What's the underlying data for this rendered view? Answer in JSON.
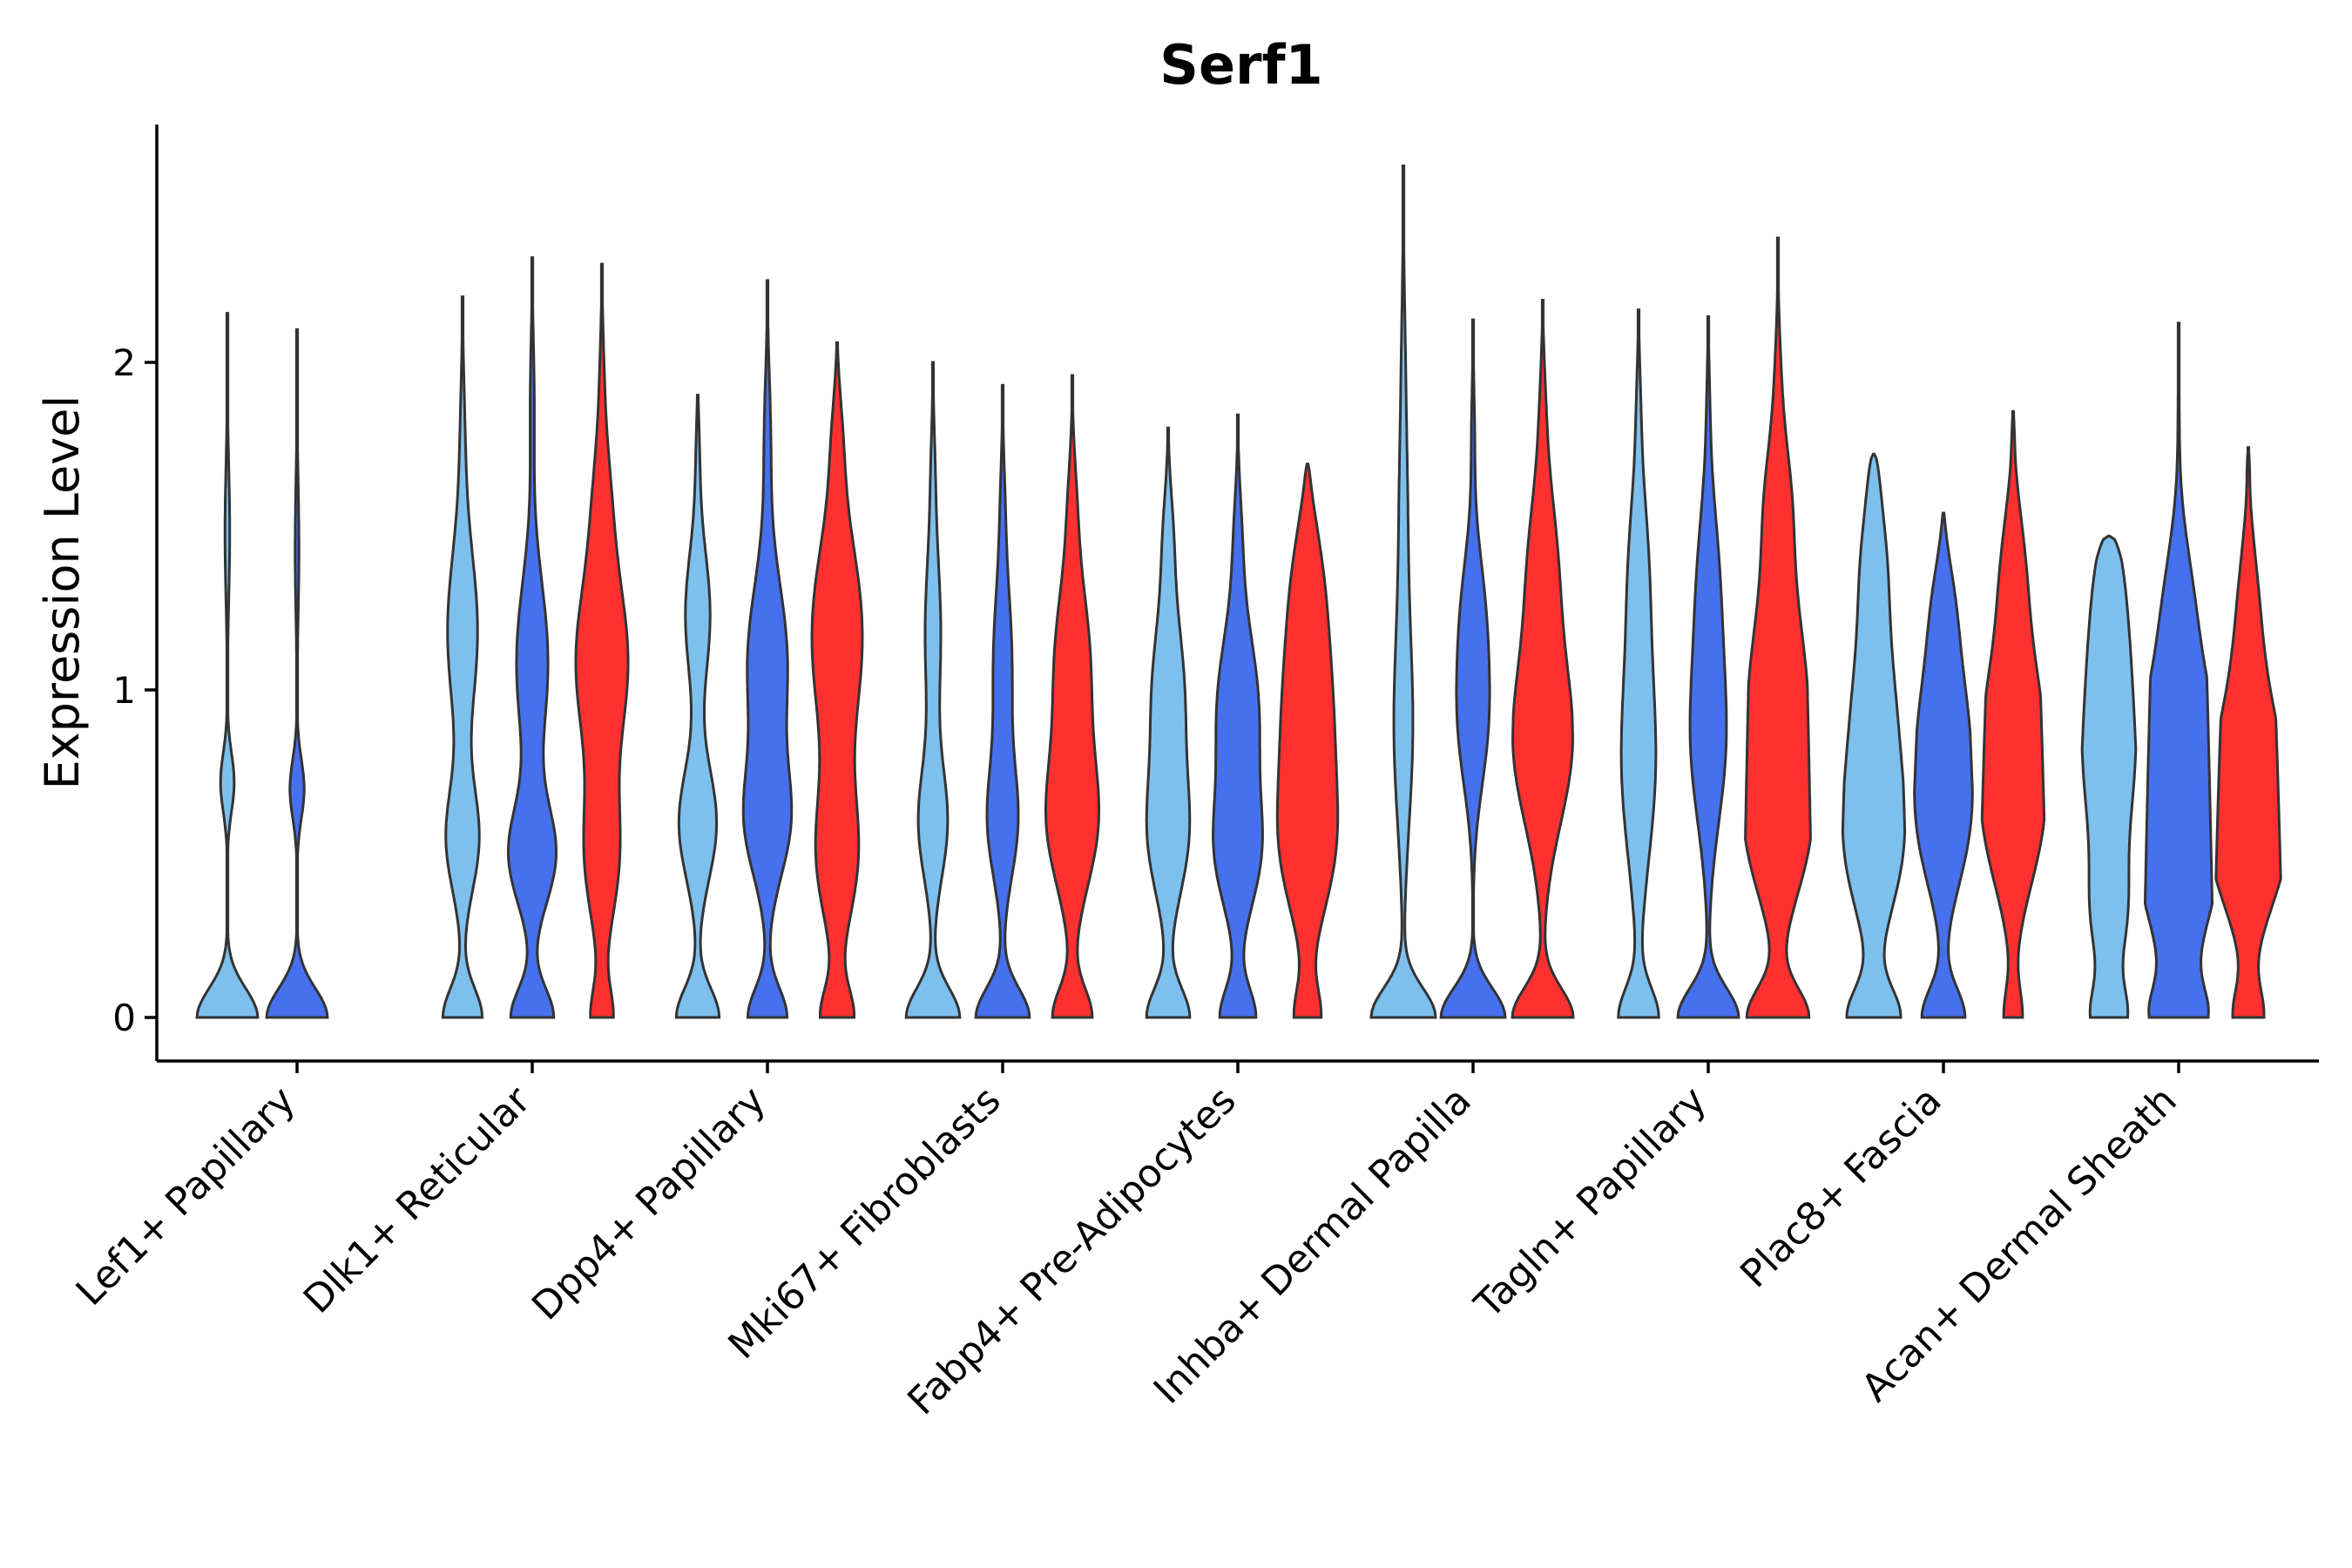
{
  "chart_data": {
    "type": "violin",
    "title": "Serf1",
    "xlabel": "",
    "ylabel": "Expression Level",
    "ylim": [
      -0.13,
      2.75
    ],
    "yticks": [
      0,
      1,
      2
    ],
    "categories": [
      "Lef1+ Papillary",
      "Dlk1+ Reticular",
      "Dpp4+ Papillary",
      "Mki67+ Fibroblasts",
      "Fabp4+ Pre-Adipocytes",
      "Inhba+ Dermal Papilla",
      "Tagln+ Papillary",
      "Plac8+ Fascia",
      "Acan+ Dermal Sheath"
    ],
    "groups": [
      {
        "name": "group-1",
        "color": "#7dbfed"
      },
      {
        "name": "group-2",
        "color": "#4670ee"
      },
      {
        "name": "group-3",
        "color": "#ff3030"
      }
    ],
    "violins": [
      {
        "category": 0,
        "group": 0,
        "max": 2.15,
        "zeroWidth": 0.85,
        "bumps": [
          [
            0.72,
            0.22,
            0.09
          ],
          [
            1.5,
            0.1,
            0.2
          ]
        ]
      },
      {
        "category": 0,
        "group": 1,
        "max": 2.1,
        "zeroWidth": 0.85,
        "bumps": [
          [
            0.7,
            0.23,
            0.09
          ],
          [
            1.45,
            0.08,
            0.2
          ]
        ]
      },
      {
        "category": 1,
        "group": 0,
        "max": 2.2,
        "zeroWidth": 0.55,
        "bumps": [
          [
            0.55,
            0.5,
            0.16
          ],
          [
            1.2,
            0.55,
            0.25
          ],
          [
            1.8,
            0.1,
            0.2
          ]
        ]
      },
      {
        "category": 1,
        "group": 1,
        "max": 2.32,
        "zeroWidth": 0.6,
        "bumps": [
          [
            0.5,
            0.7,
            0.15
          ],
          [
            1.1,
            0.55,
            0.25
          ],
          [
            1.9,
            0.1,
            0.2
          ]
        ]
      },
      {
        "category": 1,
        "group": 2,
        "max": 2.3,
        "zeroWidth": 0.3,
        "bumps": [
          [
            0.5,
            0.5,
            0.2
          ],
          [
            1.1,
            0.9,
            0.25
          ],
          [
            1.6,
            0.3,
            0.2
          ],
          [
            2.0,
            0.08,
            0.15
          ]
        ]
      },
      {
        "category": 2,
        "group": 0,
        "max": 1.9,
        "zeroWidth": 0.6,
        "bumps": [
          [
            0.6,
            0.6,
            0.17
          ],
          [
            1.25,
            0.5,
            0.2
          ],
          [
            1.75,
            0.1,
            0.15
          ]
        ]
      },
      {
        "category": 2,
        "group": 1,
        "max": 2.25,
        "zeroWidth": 0.55,
        "bumps": [
          [
            0.6,
            0.65,
            0.17
          ],
          [
            1.1,
            0.7,
            0.25
          ],
          [
            1.8,
            0.15,
            0.2
          ]
        ]
      },
      {
        "category": 2,
        "group": 2,
        "max": 2.06,
        "zeroWidth": 0.45,
        "bumps": [
          [
            0.5,
            0.6,
            0.2
          ],
          [
            1.2,
            0.95,
            0.3
          ],
          [
            1.8,
            0.2,
            0.15
          ]
        ]
      },
      {
        "category": 3,
        "group": 0,
        "max": 2.0,
        "zeroWidth": 0.75,
        "bumps": [
          [
            0.6,
            0.45,
            0.17
          ],
          [
            1.2,
            0.3,
            0.25
          ],
          [
            1.7,
            0.08,
            0.15
          ]
        ]
      },
      {
        "category": 3,
        "group": 1,
        "max": 1.93,
        "zeroWidth": 0.75,
        "bumps": [
          [
            0.6,
            0.45,
            0.17
          ],
          [
            1.1,
            0.35,
            0.25
          ],
          [
            1.6,
            0.08,
            0.15
          ]
        ]
      },
      {
        "category": 3,
        "group": 2,
        "max": 1.96,
        "zeroWidth": 0.55,
        "bumps": [
          [
            0.6,
            0.75,
            0.2
          ],
          [
            1.1,
            0.65,
            0.25
          ],
          [
            1.6,
            0.15,
            0.15
          ]
        ]
      },
      {
        "category": 4,
        "group": 0,
        "max": 1.8,
        "zeroWidth": 0.6,
        "bumps": [
          [
            0.55,
            0.55,
            0.18
          ],
          [
            1.0,
            0.6,
            0.25
          ],
          [
            1.5,
            0.2,
            0.15
          ]
        ]
      },
      {
        "category": 4,
        "group": 1,
        "max": 1.84,
        "zeroWidth": 0.5,
        "bumps": [
          [
            0.5,
            0.6,
            0.17
          ],
          [
            0.95,
            0.75,
            0.25
          ],
          [
            1.5,
            0.15,
            0.15
          ]
        ]
      },
      {
        "category": 4,
        "group": 2,
        "max": 1.69,
        "zeroWidth": 0.35,
        "bumps": [
          [
            0.5,
            0.6,
            0.2
          ],
          [
            0.95,
            0.9,
            0.3
          ],
          [
            1.4,
            0.45,
            0.2
          ]
        ]
      },
      {
        "category": 5,
        "group": 0,
        "max": 2.6,
        "zeroWidth": 0.9,
        "bumps": [
          [
            0.9,
            0.3,
            0.3
          ],
          [
            1.6,
            0.15,
            0.3
          ],
          [
            2.1,
            0.05,
            0.2
          ]
        ]
      },
      {
        "category": 5,
        "group": 1,
        "max": 2.13,
        "zeroWidth": 0.9,
        "bumps": [
          [
            0.9,
            0.45,
            0.2
          ],
          [
            1.25,
            0.4,
            0.2
          ],
          [
            1.8,
            0.08,
            0.15
          ]
        ]
      },
      {
        "category": 5,
        "group": 2,
        "max": 2.19,
        "zeroWidth": 0.85,
        "bumps": [
          [
            0.85,
            0.95,
            0.25
          ],
          [
            1.4,
            0.55,
            0.25
          ],
          [
            1.9,
            0.1,
            0.15
          ]
        ]
      },
      {
        "category": 6,
        "group": 0,
        "max": 2.16,
        "zeroWidth": 0.55,
        "bumps": [
          [
            0.8,
            0.55,
            0.3
          ],
          [
            1.4,
            0.35,
            0.25
          ],
          [
            1.9,
            0.08,
            0.15
          ]
        ]
      },
      {
        "category": 6,
        "group": 1,
        "max": 2.14,
        "zeroWidth": 0.85,
        "bumps": [
          [
            0.85,
            0.55,
            0.25
          ],
          [
            1.35,
            0.4,
            0.25
          ],
          [
            1.9,
            0.06,
            0.15
          ]
        ]
      },
      {
        "category": 6,
        "group": 2,
        "max": 2.38,
        "zeroWidth": 0.85,
        "bumps": [
          [
            0.55,
            0.7,
            0.2
          ],
          [
            1.0,
            0.95,
            0.3
          ],
          [
            1.6,
            0.45,
            0.2
          ],
          [
            2.0,
            0.1,
            0.15
          ]
        ]
      },
      {
        "category": 7,
        "group": 0,
        "max": 1.72,
        "zeroWidth": 0.72,
        "bumps": [
          [
            0.5,
            0.6,
            0.2
          ],
          [
            0.9,
            0.8,
            0.3
          ],
          [
            1.45,
            0.5,
            0.2
          ],
          [
            1.7,
            0.15,
            0.1
          ]
        ]
      },
      {
        "category": 7,
        "group": 1,
        "max": 1.54,
        "zeroWidth": 0.6,
        "bumps": [
          [
            0.55,
            0.5,
            0.18
          ],
          [
            0.9,
            0.9,
            0.25
          ],
          [
            1.3,
            0.35,
            0.15
          ]
        ]
      },
      {
        "category": 7,
        "group": 2,
        "max": 1.85,
        "zeroWidth": 0.25,
        "bumps": [
          [
            0.55,
            0.55,
            0.2
          ],
          [
            0.9,
            0.95,
            0.25
          ],
          [
            1.4,
            0.45,
            0.2
          ],
          [
            1.8,
            0.05,
            0.05
          ]
        ]
      },
      {
        "category": 8,
        "group": 0,
        "max": 1.47,
        "zeroWidth": 0.45,
        "bumps": [
          [
            0.3,
            0.35,
            0.15
          ],
          [
            0.85,
            0.92,
            0.32
          ],
          [
            1.35,
            0.8,
            0.25
          ]
        ]
      },
      {
        "category": 8,
        "group": 1,
        "max": 2.12,
        "zeroWidth": 0.6,
        "bumps": [
          [
            0.5,
            0.8,
            0.3
          ],
          [
            0.8,
            0.95,
            0.3
          ],
          [
            1.3,
            0.35,
            0.2
          ],
          [
            1.9,
            0.03,
            0.15
          ]
        ]
      },
      {
        "category": 8,
        "group": 2,
        "max": 1.74,
        "zeroWidth": 0.4,
        "bumps": [
          [
            0.5,
            0.75,
            0.2
          ],
          [
            0.8,
            0.95,
            0.25
          ],
          [
            1.3,
            0.35,
            0.2
          ],
          [
            1.7,
            0.06,
            0.05
          ]
        ]
      }
    ]
  }
}
